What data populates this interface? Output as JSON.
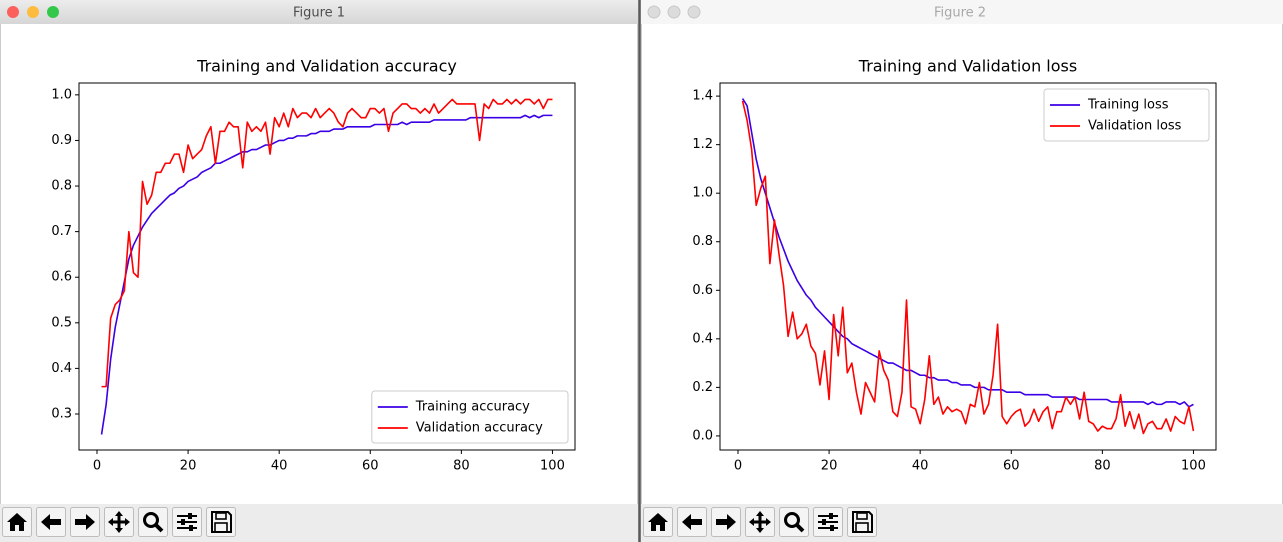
{
  "windows": [
    {
      "title": "Figure 1"
    },
    {
      "title": "Figure 2"
    }
  ],
  "chart_data": [
    {
      "type": "line",
      "title": "Training and Validation accuracy",
      "legend": "lower right",
      "x": [
        1,
        2,
        3,
        4,
        5,
        6,
        7,
        8,
        9,
        10,
        11,
        12,
        13,
        14,
        15,
        16,
        17,
        18,
        19,
        20,
        21,
        22,
        23,
        24,
        25,
        26,
        27,
        28,
        29,
        30,
        31,
        32,
        33,
        34,
        35,
        36,
        37,
        38,
        39,
        40,
        41,
        42,
        43,
        44,
        45,
        46,
        47,
        48,
        49,
        50,
        51,
        52,
        53,
        54,
        55,
        56,
        57,
        58,
        59,
        60,
        61,
        62,
        63,
        64,
        65,
        66,
        67,
        68,
        69,
        70,
        71,
        72,
        73,
        74,
        75,
        76,
        77,
        78,
        79,
        80,
        81,
        82,
        83,
        84,
        85,
        86,
        87,
        88,
        89,
        90,
        91,
        92,
        93,
        94,
        95,
        96,
        97,
        98,
        99,
        100
      ],
      "xlim": [
        -3.95,
        104.95
      ],
      "xticks": [
        0,
        20,
        40,
        60,
        80,
        100
      ],
      "ylim": [
        0.221,
        1.026
      ],
      "yticks": [
        0.3,
        0.4,
        0.5,
        0.6,
        0.7,
        0.8,
        0.9,
        {
          "value": 1,
          "label": "1.0"
        }
      ],
      "series": [
        {
          "name": "Training accuracy",
          "color": "#3b00e6",
          "values": [
            0.255,
            0.32,
            0.42,
            0.49,
            0.54,
            0.59,
            0.64,
            0.67,
            0.69,
            0.71,
            0.725,
            0.74,
            0.75,
            0.76,
            0.77,
            0.78,
            0.785,
            0.795,
            0.8,
            0.81,
            0.815,
            0.82,
            0.83,
            0.835,
            0.84,
            0.85,
            0.85,
            0.855,
            0.86,
            0.865,
            0.87,
            0.875,
            0.875,
            0.88,
            0.88,
            0.885,
            0.89,
            0.89,
            0.895,
            0.9,
            0.9,
            0.905,
            0.905,
            0.91,
            0.91,
            0.91,
            0.915,
            0.915,
            0.92,
            0.92,
            0.92,
            0.925,
            0.925,
            0.925,
            0.93,
            0.93,
            0.93,
            0.93,
            0.93,
            0.93,
            0.935,
            0.935,
            0.935,
            0.935,
            0.935,
            0.935,
            0.94,
            0.935,
            0.94,
            0.94,
            0.94,
            0.94,
            0.94,
            0.945,
            0.945,
            0.945,
            0.945,
            0.945,
            0.945,
            0.945,
            0.945,
            0.95,
            0.95,
            0.95,
            0.95,
            0.95,
            0.95,
            0.95,
            0.95,
            0.95,
            0.95,
            0.95,
            0.95,
            0.955,
            0.95,
            0.955,
            0.95,
            0.955,
            0.955,
            0.955
          ]
        },
        {
          "name": "Validation accuracy",
          "color": "#ff0000",
          "values": [
            0.36,
            0.36,
            0.51,
            0.54,
            0.55,
            0.57,
            0.7,
            0.61,
            0.6,
            0.81,
            0.76,
            0.78,
            0.83,
            0.83,
            0.85,
            0.85,
            0.87,
            0.87,
            0.83,
            0.89,
            0.86,
            0.87,
            0.88,
            0.91,
            0.93,
            0.85,
            0.92,
            0.92,
            0.94,
            0.93,
            0.93,
            0.84,
            0.94,
            0.92,
            0.93,
            0.92,
            0.94,
            0.87,
            0.95,
            0.93,
            0.96,
            0.93,
            0.97,
            0.95,
            0.96,
            0.96,
            0.95,
            0.97,
            0.95,
            0.96,
            0.97,
            0.96,
            0.94,
            0.93,
            0.96,
            0.97,
            0.96,
            0.95,
            0.95,
            0.97,
            0.97,
            0.96,
            0.97,
            0.92,
            0.96,
            0.97,
            0.98,
            0.98,
            0.97,
            0.97,
            0.96,
            0.97,
            0.96,
            0.98,
            0.96,
            0.97,
            0.98,
            0.99,
            0.98,
            0.98,
            0.98,
            0.98,
            0.98,
            0.9,
            0.98,
            0.97,
            0.99,
            0.98,
            0.98,
            0.99,
            0.98,
            0.99,
            0.98,
            0.99,
            0.99,
            0.98,
            0.99,
            0.97,
            0.99,
            0.99
          ]
        }
      ]
    },
    {
      "type": "line",
      "title": "Training and Validation loss",
      "legend": "upper right",
      "x": [
        1,
        2,
        3,
        4,
        5,
        6,
        7,
        8,
        9,
        10,
        11,
        12,
        13,
        14,
        15,
        16,
        17,
        18,
        19,
        20,
        21,
        22,
        23,
        24,
        25,
        26,
        27,
        28,
        29,
        30,
        31,
        32,
        33,
        34,
        35,
        36,
        37,
        38,
        39,
        40,
        41,
        42,
        43,
        44,
        45,
        46,
        47,
        48,
        49,
        50,
        51,
        52,
        53,
        54,
        55,
        56,
        57,
        58,
        59,
        60,
        61,
        62,
        63,
        64,
        65,
        66,
        67,
        68,
        69,
        70,
        71,
        72,
        73,
        74,
        75,
        76,
        77,
        78,
        79,
        80,
        81,
        82,
        83,
        84,
        85,
        86,
        87,
        88,
        89,
        90,
        91,
        92,
        93,
        94,
        95,
        96,
        97,
        98,
        99,
        100
      ],
      "xlim": [
        -3.95,
        104.95
      ],
      "xticks": [
        0,
        20,
        40,
        60,
        80,
        100
      ],
      "ylim": [
        -0.058,
        1.454
      ],
      "yticks": [
        {
          "value": 0,
          "label": "0.0"
        },
        0.2,
        0.4,
        0.6,
        0.8,
        {
          "value": 1,
          "label": "1.0"
        },
        1.2,
        1.4
      ],
      "series": [
        {
          "name": "Training loss",
          "color": "#3b00e6",
          "values": [
            1.39,
            1.36,
            1.25,
            1.14,
            1.06,
            1.0,
            0.94,
            0.88,
            0.82,
            0.77,
            0.72,
            0.68,
            0.64,
            0.61,
            0.58,
            0.56,
            0.53,
            0.51,
            0.49,
            0.47,
            0.45,
            0.43,
            0.41,
            0.4,
            0.38,
            0.37,
            0.36,
            0.35,
            0.34,
            0.33,
            0.32,
            0.31,
            0.3,
            0.3,
            0.29,
            0.28,
            0.27,
            0.27,
            0.26,
            0.25,
            0.25,
            0.24,
            0.24,
            0.23,
            0.23,
            0.23,
            0.22,
            0.22,
            0.21,
            0.21,
            0.21,
            0.2,
            0.2,
            0.2,
            0.19,
            0.19,
            0.19,
            0.19,
            0.18,
            0.18,
            0.18,
            0.18,
            0.17,
            0.17,
            0.17,
            0.17,
            0.17,
            0.17,
            0.16,
            0.16,
            0.16,
            0.16,
            0.16,
            0.16,
            0.15,
            0.15,
            0.15,
            0.15,
            0.15,
            0.15,
            0.15,
            0.14,
            0.14,
            0.14,
            0.14,
            0.14,
            0.14,
            0.14,
            0.14,
            0.13,
            0.14,
            0.13,
            0.13,
            0.14,
            0.14,
            0.14,
            0.13,
            0.14,
            0.12,
            0.13
          ]
        },
        {
          "name": "Validation loss",
          "color": "#ff0000",
          "values": [
            1.38,
            1.3,
            1.18,
            0.95,
            1.02,
            1.07,
            0.71,
            0.89,
            0.75,
            0.62,
            0.41,
            0.51,
            0.4,
            0.42,
            0.46,
            0.37,
            0.34,
            0.21,
            0.35,
            0.15,
            0.5,
            0.33,
            0.53,
            0.26,
            0.3,
            0.18,
            0.09,
            0.22,
            0.18,
            0.14,
            0.35,
            0.27,
            0.23,
            0.1,
            0.08,
            0.18,
            0.56,
            0.12,
            0.11,
            0.05,
            0.15,
            0.33,
            0.13,
            0.16,
            0.09,
            0.12,
            0.1,
            0.11,
            0.1,
            0.05,
            0.13,
            0.12,
            0.22,
            0.09,
            0.13,
            0.25,
            0.46,
            0.08,
            0.05,
            0.08,
            0.1,
            0.11,
            0.04,
            0.06,
            0.11,
            0.06,
            0.1,
            0.12,
            0.03,
            0.1,
            0.1,
            0.16,
            0.13,
            0.16,
            0.07,
            0.18,
            0.06,
            0.05,
            0.02,
            0.04,
            0.03,
            0.03,
            0.07,
            0.17,
            0.04,
            0.1,
            0.03,
            0.09,
            0.01,
            0.05,
            0.06,
            0.03,
            0.03,
            0.07,
            0.02,
            0.08,
            0.06,
            0.05,
            0.12,
            0.02
          ]
        }
      ]
    }
  ]
}
